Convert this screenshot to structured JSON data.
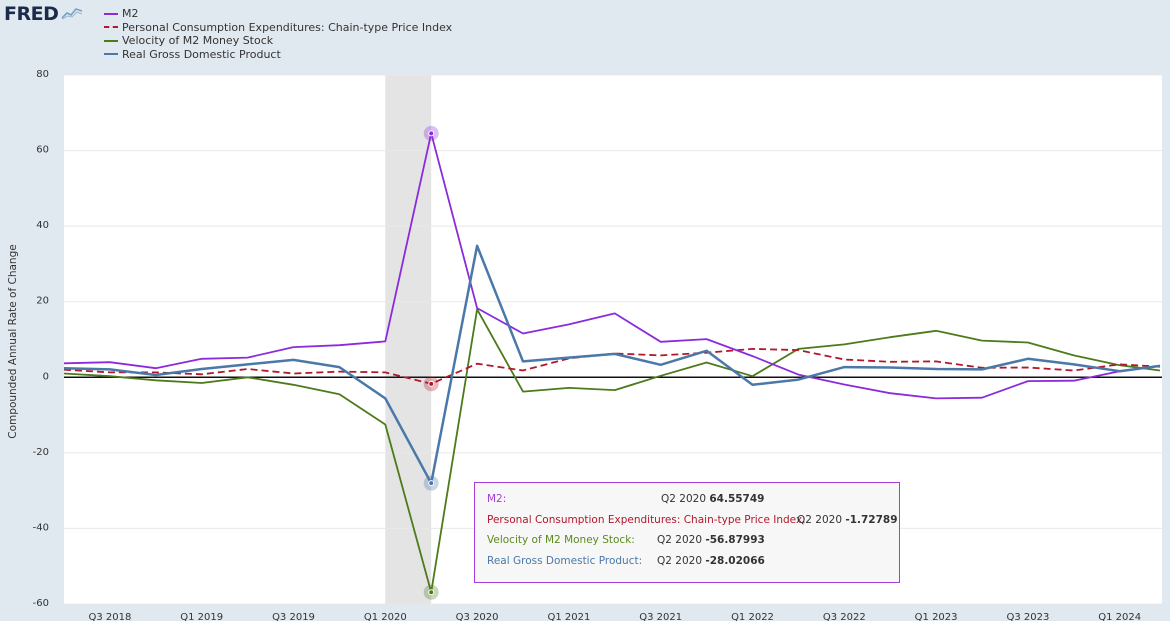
{
  "header": {
    "logo_text": "FRED",
    "logo_icon": "trend-chart-icon"
  },
  "legend": [
    {
      "label": "M2",
      "color": "#8b2bdb",
      "style": "solid"
    },
    {
      "label": "Personal Consumption Expenditures: Chain-type Price Index",
      "color": "#b2182b",
      "style": "dashed"
    },
    {
      "label": "Velocity of M2 Money Stock",
      "color": "#4d7a1a",
      "style": "solid"
    },
    {
      "label": "Real Gross Domestic Product",
      "color": "#4a78a8",
      "style": "solid"
    }
  ],
  "tooltip": {
    "rows": [
      {
        "label": "M2:",
        "date": "Q2 2020",
        "value": "64.55749",
        "color": "#a53fd9"
      },
      {
        "label": "Personal Consumption Expenditures: Chain-type Price Index:",
        "date": "Q2 2020",
        "value": "-1.72789",
        "color": "#b2182b"
      },
      {
        "label": "Velocity of M2 Money Stock:",
        "date": "Q2 2020",
        "value": "-56.87993",
        "color": "#5a8a1f"
      },
      {
        "label": "Real Gross Domestic Product:",
        "date": "Q2 2020",
        "value": "-28.02066",
        "color": "#4a78a8"
      }
    ]
  },
  "chart_data": {
    "type": "line",
    "ylabel": "Compounded Annual Rate of Change",
    "xlabel": "",
    "title": "",
    "ylim": [
      -60,
      80
    ],
    "yticks": [
      -60,
      -40,
      -20,
      0,
      20,
      40,
      60,
      80
    ],
    "xlim": [
      "Q2 2018",
      "Q2 2024"
    ],
    "xtick_labels": [
      "Q3 2018",
      "Q1 2019",
      "Q3 2019",
      "Q1 2020",
      "Q3 2020",
      "Q1 2021",
      "Q3 2021",
      "Q1 2022",
      "Q3 2022",
      "Q1 2023",
      "Q3 2023",
      "Q1 2024"
    ],
    "xtick_index": [
      1,
      3,
      5,
      7,
      9,
      11,
      13,
      15,
      17,
      19,
      21,
      23
    ],
    "recession_shading": {
      "start": "Q1 2020",
      "end": "Q2 2020"
    },
    "highlight_index": 8,
    "categories": [
      "Q2 2018",
      "Q3 2018",
      "Q4 2018",
      "Q1 2019",
      "Q2 2019",
      "Q3 2019",
      "Q4 2019",
      "Q1 2020",
      "Q2 2020",
      "Q3 2020",
      "Q4 2020",
      "Q1 2021",
      "Q2 2021",
      "Q3 2021",
      "Q4 2021",
      "Q1 2022",
      "Q2 2022",
      "Q3 2022",
      "Q4 2022",
      "Q1 2023",
      "Q2 2023",
      "Q3 2023",
      "Q4 2023",
      "Q1 2024",
      "Q2 2024"
    ],
    "series": [
      {
        "name": "M2",
        "color": "#8b2bdb",
        "dashed": false,
        "values": [
          3.7,
          4.0,
          2.4,
          4.9,
          5.2,
          8.0,
          8.5,
          9.5,
          64.56,
          18.3,
          11.6,
          14.0,
          16.9,
          9.4,
          10.1,
          5.6,
          0.7,
          -1.9,
          -4.2,
          -5.6,
          -5.4,
          -1.0,
          -0.9,
          1.6,
          3.0
        ]
      },
      {
        "name": "Personal Consumption Expenditures: Chain-type Price Index",
        "color": "#b2182b",
        "dashed": true,
        "values": [
          2.0,
          1.3,
          1.3,
          0.8,
          2.2,
          1.0,
          1.5,
          1.3,
          -1.73,
          3.6,
          1.8,
          5.0,
          6.3,
          5.8,
          6.5,
          7.5,
          7.2,
          4.7,
          4.1,
          4.2,
          2.5,
          2.6,
          1.8,
          3.4,
          2.8
        ]
      },
      {
        "name": "Velocity of M2 Money Stock",
        "color": "#4d7a1a",
        "dashed": false,
        "values": [
          1.0,
          0.3,
          -0.8,
          -1.5,
          0.0,
          -2.0,
          -4.5,
          -12.5,
          -56.88,
          18.0,
          -3.8,
          -2.8,
          -3.4,
          0.4,
          3.9,
          0.3,
          7.5,
          8.7,
          10.6,
          12.3,
          9.7,
          9.2,
          5.8,
          3.2,
          1.8
        ]
      },
      {
        "name": "Real Gross Domestic Product",
        "color": "#4a78a8",
        "dashed": false,
        "values": [
          2.4,
          2.1,
          0.6,
          2.2,
          3.4,
          4.6,
          2.7,
          -5.6,
          -28.02,
          34.8,
          4.2,
          5.2,
          6.2,
          3.3,
          7.0,
          -2.0,
          -0.6,
          2.7,
          2.6,
          2.2,
          2.1,
          4.9,
          3.4,
          1.6,
          3.0
        ]
      }
    ]
  }
}
